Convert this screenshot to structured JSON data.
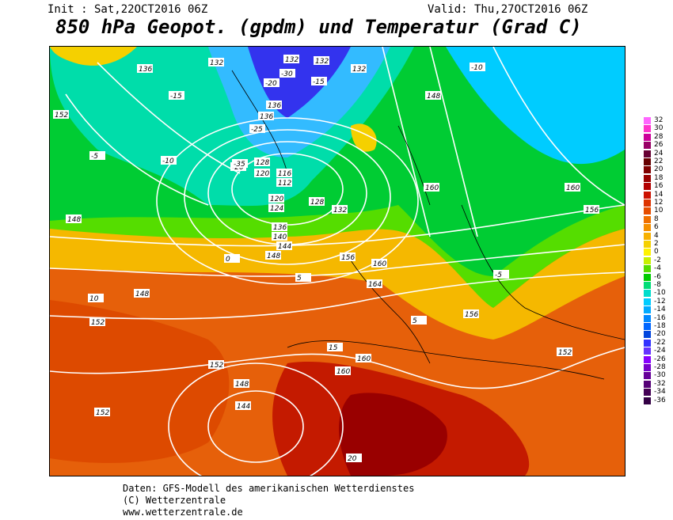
{
  "header": {
    "init": "Init : Sat,22OCT2016 06Z",
    "valid": "Valid: Thu,27OCT2016 06Z",
    "title": "850 hPa Geopot. (gpdm) und Temperatur (Grad C)"
  },
  "legend": {
    "values": [
      "32",
      "30",
      "28",
      "26",
      "24",
      "22",
      "20",
      "18",
      "16",
      "14",
      "12",
      "10",
      "8",
      "6",
      "4",
      "2",
      "0",
      "-2",
      "-4",
      "-6",
      "-8",
      "-10",
      "-12",
      "-14",
      "-16",
      "-18",
      "-20",
      "-22",
      "-24",
      "-26",
      "-28",
      "-30",
      "-32",
      "-34",
      "-36"
    ],
    "colors": [
      "#ff66ff",
      "#ff33cc",
      "#cc0099",
      "#990066",
      "#660033",
      "#660000",
      "#800000",
      "#990000",
      "#b30000",
      "#cc1100",
      "#dd3300",
      "#e64d00",
      "#f07000",
      "#f59000",
      "#f7b000",
      "#f5d000",
      "#fff200",
      "#c8f000",
      "#55dd00",
      "#00cc00",
      "#00dd77",
      "#00ddcc",
      "#00ccff",
      "#00aaff",
      "#0088ff",
      "#0066ff",
      "#0044dd",
      "#3333ff",
      "#6633ff",
      "#8800ff",
      "#7700cc",
      "#660099",
      "#550077",
      "#440055",
      "#330044"
    ]
  },
  "map": {
    "geopotential_labels": [
      "132",
      "132",
      "132",
      "132",
      "136",
      "136",
      "136",
      "152",
      "148",
      "128",
      "120",
      "116",
      "112",
      "120",
      "124",
      "128",
      "132",
      "136",
      "140",
      "144",
      "148",
      "156",
      "160",
      "164",
      "148",
      "152",
      "152",
      "148",
      "144",
      "152",
      "156",
      "160",
      "160",
      "160",
      "152",
      "148",
      "160",
      "156"
    ],
    "temperature_labels": [
      "-15",
      "-20",
      "-20",
      "-15",
      "-10",
      "-10",
      "-5",
      "-5",
      "0",
      "5",
      "10",
      "15",
      "20",
      "-30",
      "-25",
      "-35",
      "5"
    ]
  },
  "footer": {
    "line1": "Daten: GFS-Modell des amerikanischen Wetterdienstes",
    "line2": "(C) Wetterzentrale",
    "line3": "www.wetterzentrale.de"
  }
}
